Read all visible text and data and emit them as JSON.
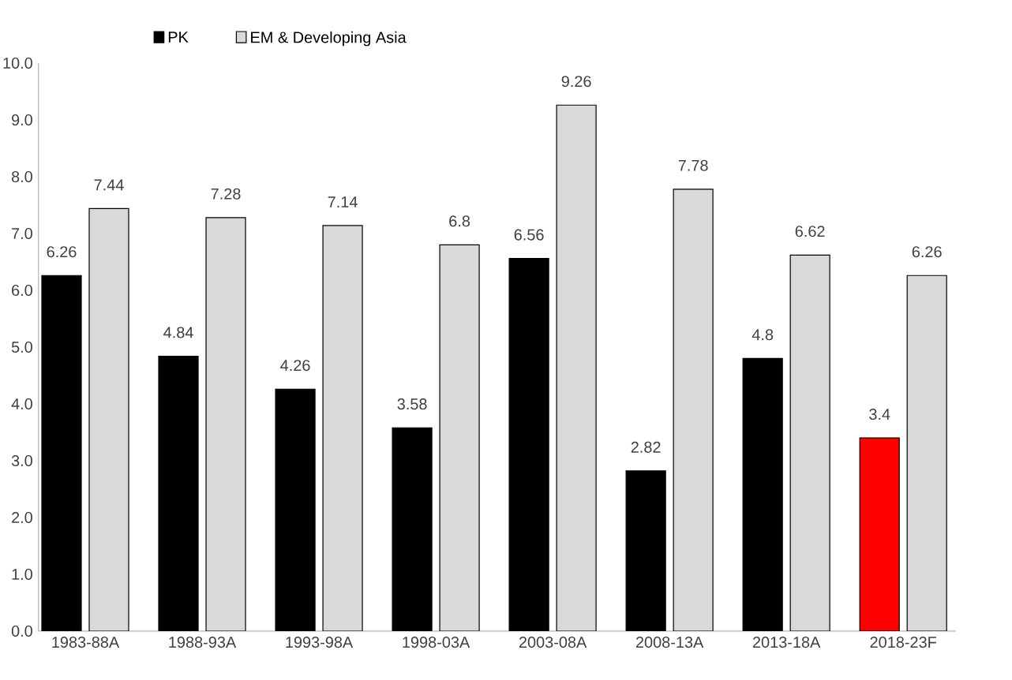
{
  "chart_data": {
    "type": "bar",
    "categories": [
      "1983-88A",
      "1988-93A",
      "1993-98A",
      "1998-03A",
      "2003-08A",
      "2008-13A",
      "2013-18A",
      "2018-23F"
    ],
    "series": [
      {
        "name": "PK",
        "color": "#000000",
        "colors": [
          "#000000",
          "#000000",
          "#000000",
          "#000000",
          "#000000",
          "#000000",
          "#000000",
          "#ff0000"
        ],
        "values": [
          6.26,
          4.84,
          4.26,
          3.58,
          6.56,
          2.82,
          4.8,
          3.4
        ]
      },
      {
        "name": "EM & Developing Asia",
        "color": "#d9d9d9",
        "values": [
          7.44,
          7.28,
          7.14,
          6.8,
          9.26,
          7.78,
          6.62,
          6.26
        ]
      }
    ],
    "ylim": [
      0,
      10
    ],
    "yticks": [
      {
        "value": 0,
        "label": "0.0"
      },
      {
        "value": 1,
        "label": "1.0"
      },
      {
        "value": 2,
        "label": "2.0"
      },
      {
        "value": 3,
        "label": "3.0"
      },
      {
        "value": 4,
        "label": "4.0"
      },
      {
        "value": 5,
        "label": "5.0"
      },
      {
        "value": 6,
        "label": "6.0"
      },
      {
        "value": 7,
        "label": "7.0"
      },
      {
        "value": 8,
        "label": "8.0"
      },
      {
        "value": 9,
        "label": "9.0"
      },
      {
        "value": 10,
        "label": "10.0"
      }
    ],
    "data_labels": true,
    "legend": "top left"
  }
}
